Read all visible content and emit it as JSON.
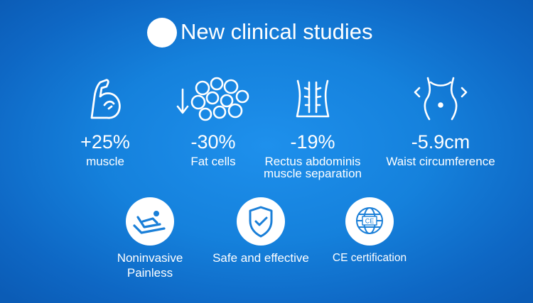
{
  "header": {
    "title": "New clinical studies"
  },
  "stats": [
    {
      "value": "+25%",
      "label": "muscle",
      "icon": "flexed-arm-icon"
    },
    {
      "value": "-30%",
      "label": "Fat cells",
      "icon": "fat-cells-icon"
    },
    {
      "value": "-19%",
      "label": "Rectus abdominis",
      "label2": "muscle separation",
      "icon": "abdominal-muscle-icon"
    },
    {
      "value": "-5.9cm",
      "label": "Waist circumference",
      "icon": "waist-icon"
    }
  ],
  "features": [
    {
      "line1": "Noninvasive",
      "line2": "Painless",
      "icon": "reclining-person-icon"
    },
    {
      "line1": "Safe and effective",
      "icon": "shield-check-icon"
    },
    {
      "line1": "CE certification",
      "icon": "ce-globe-icon",
      "badge": "CE"
    }
  ],
  "colors": {
    "background": "#1581dc",
    "foreground": "#ffffff",
    "icon_accent": "#1a7fd8"
  }
}
